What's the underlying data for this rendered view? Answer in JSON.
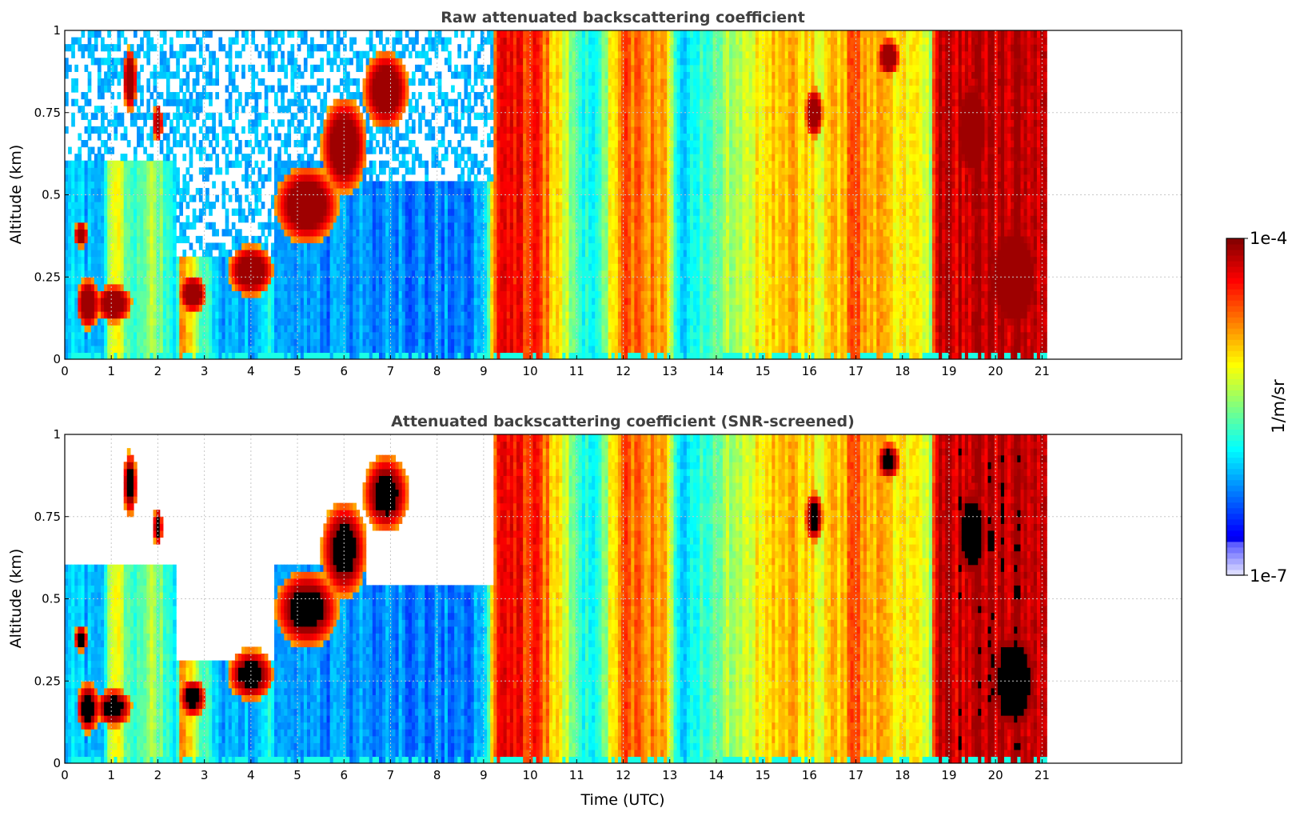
{
  "chart_data": [
    {
      "type": "heatmap",
      "title": "Raw attenuated backscattering coefficient",
      "xlabel": "",
      "ylabel": "Altitude (km)",
      "xlim": [
        0,
        24
      ],
      "ylim": [
        0,
        1
      ],
      "x_ticks": [
        "0",
        "1",
        "2",
        "3",
        "4",
        "5",
        "6",
        "7",
        "8",
        "9",
        "10",
        "11",
        "12",
        "13",
        "14",
        "15",
        "16",
        "17",
        "18",
        "19",
        "20",
        "21"
      ],
      "y_ticks": [
        "0",
        "0.25",
        "0.5",
        "0.75",
        "1"
      ],
      "grid": true,
      "data_end_hour": 21.1,
      "screened": false
    },
    {
      "type": "heatmap",
      "title": "Attenuated backscattering coefficient (SNR-screened)",
      "xlabel": "Time (UTC)",
      "ylabel": "Altitude (km)",
      "xlim": [
        0,
        24
      ],
      "ylim": [
        0,
        1
      ],
      "x_ticks": [
        "0",
        "1",
        "2",
        "3",
        "4",
        "5",
        "6",
        "7",
        "8",
        "9",
        "10",
        "11",
        "12",
        "13",
        "14",
        "15",
        "16",
        "17",
        "18",
        "19",
        "20",
        "21"
      ],
      "y_ticks": [
        "0",
        "0.25",
        "0.5",
        "0.75",
        "1"
      ],
      "grid": true,
      "data_end_hour": 21.1,
      "screened": true
    }
  ],
  "colorbar": {
    "label": "1/m/sr",
    "max_label": "1e-4",
    "min_label": "1e-7",
    "scale": "log",
    "colormap": "jet"
  }
}
